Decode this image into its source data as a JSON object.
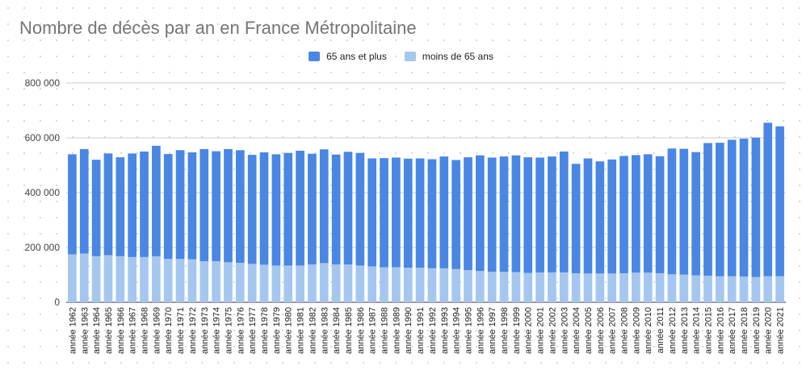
{
  "chart_data": {
    "type": "bar",
    "stacked": true,
    "title": "Nombre de décès par an en France Métropolitaine",
    "xlabel": "",
    "ylabel": "",
    "ylim": [
      0,
      800000
    ],
    "y_ticks": [
      0,
      200000,
      400000,
      600000,
      800000
    ],
    "y_tick_labels": [
      "0",
      "200 000",
      "400 000",
      "600 000",
      "800 000"
    ],
    "grid": true,
    "legend_position": "top",
    "categories": [
      "année 1962",
      "année 1963",
      "année 1964",
      "année 1965",
      "année 1966",
      "année 1967",
      "année 1968",
      "année 1969",
      "année 1970",
      "année 1971",
      "année 1972",
      "année 1973",
      "année 1974",
      "année 1975",
      "année 1976",
      "année 1977",
      "année 1978",
      "année 1979",
      "année 1980",
      "année 1981",
      "année 1982",
      "année 1983",
      "année 1984",
      "année 1985",
      "année 1986",
      "année 1987",
      "année 1988",
      "année 1989",
      "année 1990",
      "année 1991",
      "année 1992",
      "année 1993",
      "année 1994",
      "année 1995",
      "année 1996",
      "année 1997",
      "année 1998",
      "année 1999",
      "année 2000",
      "année 2001",
      "année 2002",
      "année 2003",
      "année 2004",
      "année 2005",
      "année 2006",
      "année 2007",
      "année 2008",
      "année 2009",
      "année 2010",
      "année 2011",
      "année 2012",
      "année 2013",
      "année 2014",
      "année 2015",
      "année 2016",
      "année 2017",
      "année 2018",
      "année 2019",
      "année 2020",
      "année 2021"
    ],
    "series": [
      {
        "name": "moins de 65 ans",
        "color": "#a4c7ef",
        "values": [
          175000,
          178000,
          168000,
          172000,
          168000,
          165000,
          165000,
          168000,
          158000,
          158000,
          157000,
          150000,
          150000,
          146000,
          144000,
          140000,
          137000,
          134000,
          134000,
          134000,
          138000,
          143000,
          138000,
          138000,
          134000,
          131000,
          128000,
          128000,
          126000,
          126000,
          124000,
          124000,
          121000,
          117000,
          114000,
          111000,
          111000,
          110000,
          107000,
          109000,
          109000,
          109000,
          106000,
          105000,
          105000,
          105000,
          106000,
          108000,
          108000,
          106000,
          102000,
          101000,
          98000,
          97000,
          95000,
          95000,
          94000,
          92000,
          95000,
          95000
        ]
      },
      {
        "name": "65 ans et plus",
        "color": "#4a86e3",
        "values": [
          365000,
          381000,
          352000,
          371000,
          361000,
          378000,
          385000,
          403000,
          383000,
          397000,
          390000,
          409000,
          401000,
          413000,
          411000,
          398000,
          410000,
          406000,
          411000,
          419000,
          404000,
          415000,
          401000,
          411000,
          411000,
          394000,
          398000,
          400000,
          398000,
          399000,
          398000,
          408000,
          398000,
          412000,
          422000,
          417000,
          421000,
          426000,
          422000,
          419000,
          423000,
          441000,
          399000,
          420000,
          409000,
          416000,
          428000,
          429000,
          432000,
          427000,
          459000,
          459000,
          450000,
          484000,
          487000,
          498000,
          503000,
          509000,
          560000,
          547000
        ]
      }
    ]
  }
}
